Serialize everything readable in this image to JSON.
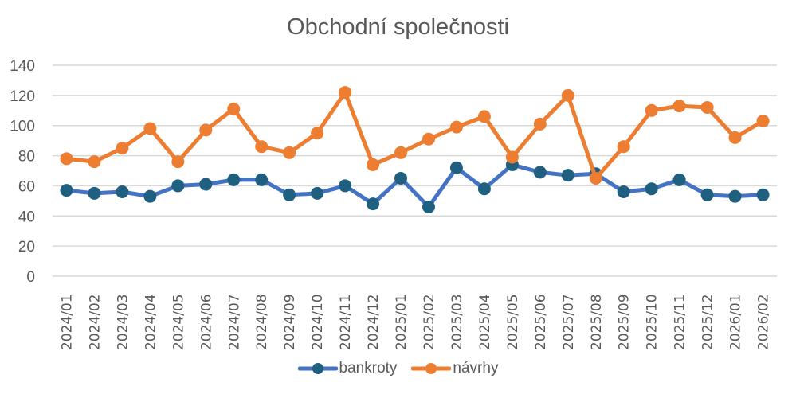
{
  "chart_data": {
    "type": "line",
    "title": "Obchodní společnosti",
    "xlabel": "",
    "ylabel": "",
    "ylim": [
      0,
      140
    ],
    "yticks": [
      0,
      20,
      40,
      60,
      80,
      100,
      120,
      140
    ],
    "grid": true,
    "legend_position": "bottom",
    "categories": [
      "2024/01",
      "2024/02",
      "2024/03",
      "2024/04",
      "2024/05",
      "2024/06",
      "2024/07",
      "2024/08",
      "2024/09",
      "2024/10",
      "2024/11",
      "2024/12",
      "2025/01",
      "2025/02",
      "2025/03",
      "2025/04",
      "2025/05",
      "2025/06",
      "2025/07",
      "2025/08",
      "2025/09",
      "2025/10",
      "2025/11",
      "2025/12",
      "2026/01",
      "2026/02"
    ],
    "series": [
      {
        "name": "bankroty",
        "line_color": "#4472C4",
        "marker_color": "#1F5F7F",
        "values": [
          57,
          55,
          56,
          53,
          60,
          61,
          64,
          64,
          54,
          55,
          60,
          48,
          65,
          46,
          72,
          58,
          74,
          69,
          67,
          68,
          56,
          58,
          64,
          54,
          53,
          54
        ]
      },
      {
        "name": "návrhy",
        "line_color": "#ED7D31",
        "marker_color": "#ED7D31",
        "values": [
          78,
          76,
          85,
          98,
          76,
          97,
          111,
          86,
          82,
          95,
          122,
          74,
          82,
          91,
          99,
          106,
          79,
          101,
          120,
          65,
          86,
          110,
          113,
          112,
          92,
          103
        ]
      }
    ]
  },
  "legend": {
    "items": [
      {
        "label": "bankroty"
      },
      {
        "label": "návrhy"
      }
    ]
  }
}
